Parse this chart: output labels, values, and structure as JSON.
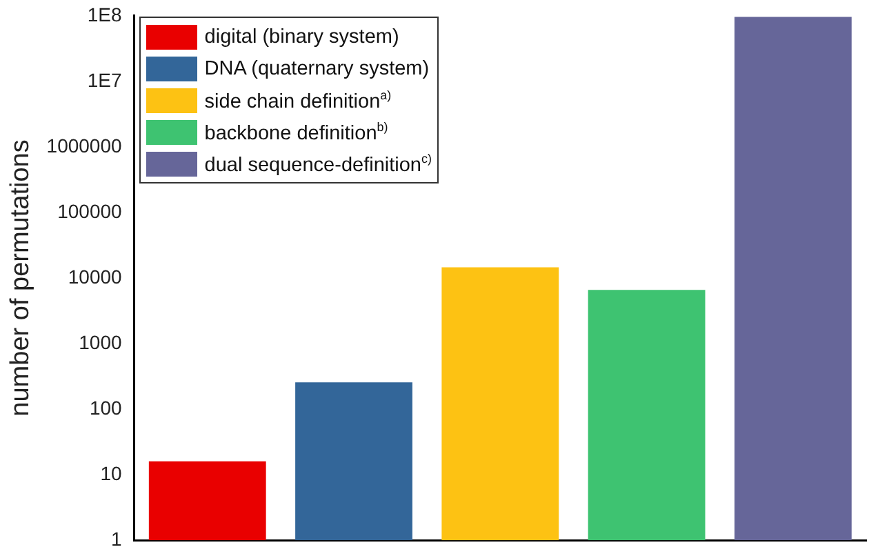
{
  "chart_data": {
    "type": "bar",
    "ylabel": "number of permutations",
    "categories": [
      null,
      null,
      null,
      null,
      null
    ],
    "series": [
      {
        "name": "digital (binary system)",
        "color": "#e90000",
        "values": [
          16,
          null,
          null,
          null,
          null
        ]
      },
      {
        "name": "DNA (quaternary system)",
        "color": "#336699",
        "values": [
          null,
          256,
          null,
          null,
          null
        ]
      },
      {
        "name": "side chain definition$^{a)}$",
        "color": "#fdc213",
        "values": [
          null,
          null,
          14600,
          null,
          null
        ]
      },
      {
        "name": "backbone definition$^{b)}$",
        "color": "#3ec371",
        "values": [
          null,
          null,
          null,
          6600,
          null
        ]
      },
      {
        "name": "dual sequence-definition$^{c)}$",
        "color": "#666699",
        "values": [
          null,
          null,
          null,
          null,
          96000000
        ]
      }
    ],
    "log": "y",
    "ylim": [
      1,
      100000000
    ],
    "yticks": [
      1,
      10,
      100,
      1000,
      10000,
      100000,
      1000000,
      {
        "value": 10000000,
        "label": "1E7"
      },
      {
        "value": 100000000,
        "label": "1E8"
      }
    ],
    "grid": false,
    "legend": "top left",
    "tick_labels": "y"
  }
}
